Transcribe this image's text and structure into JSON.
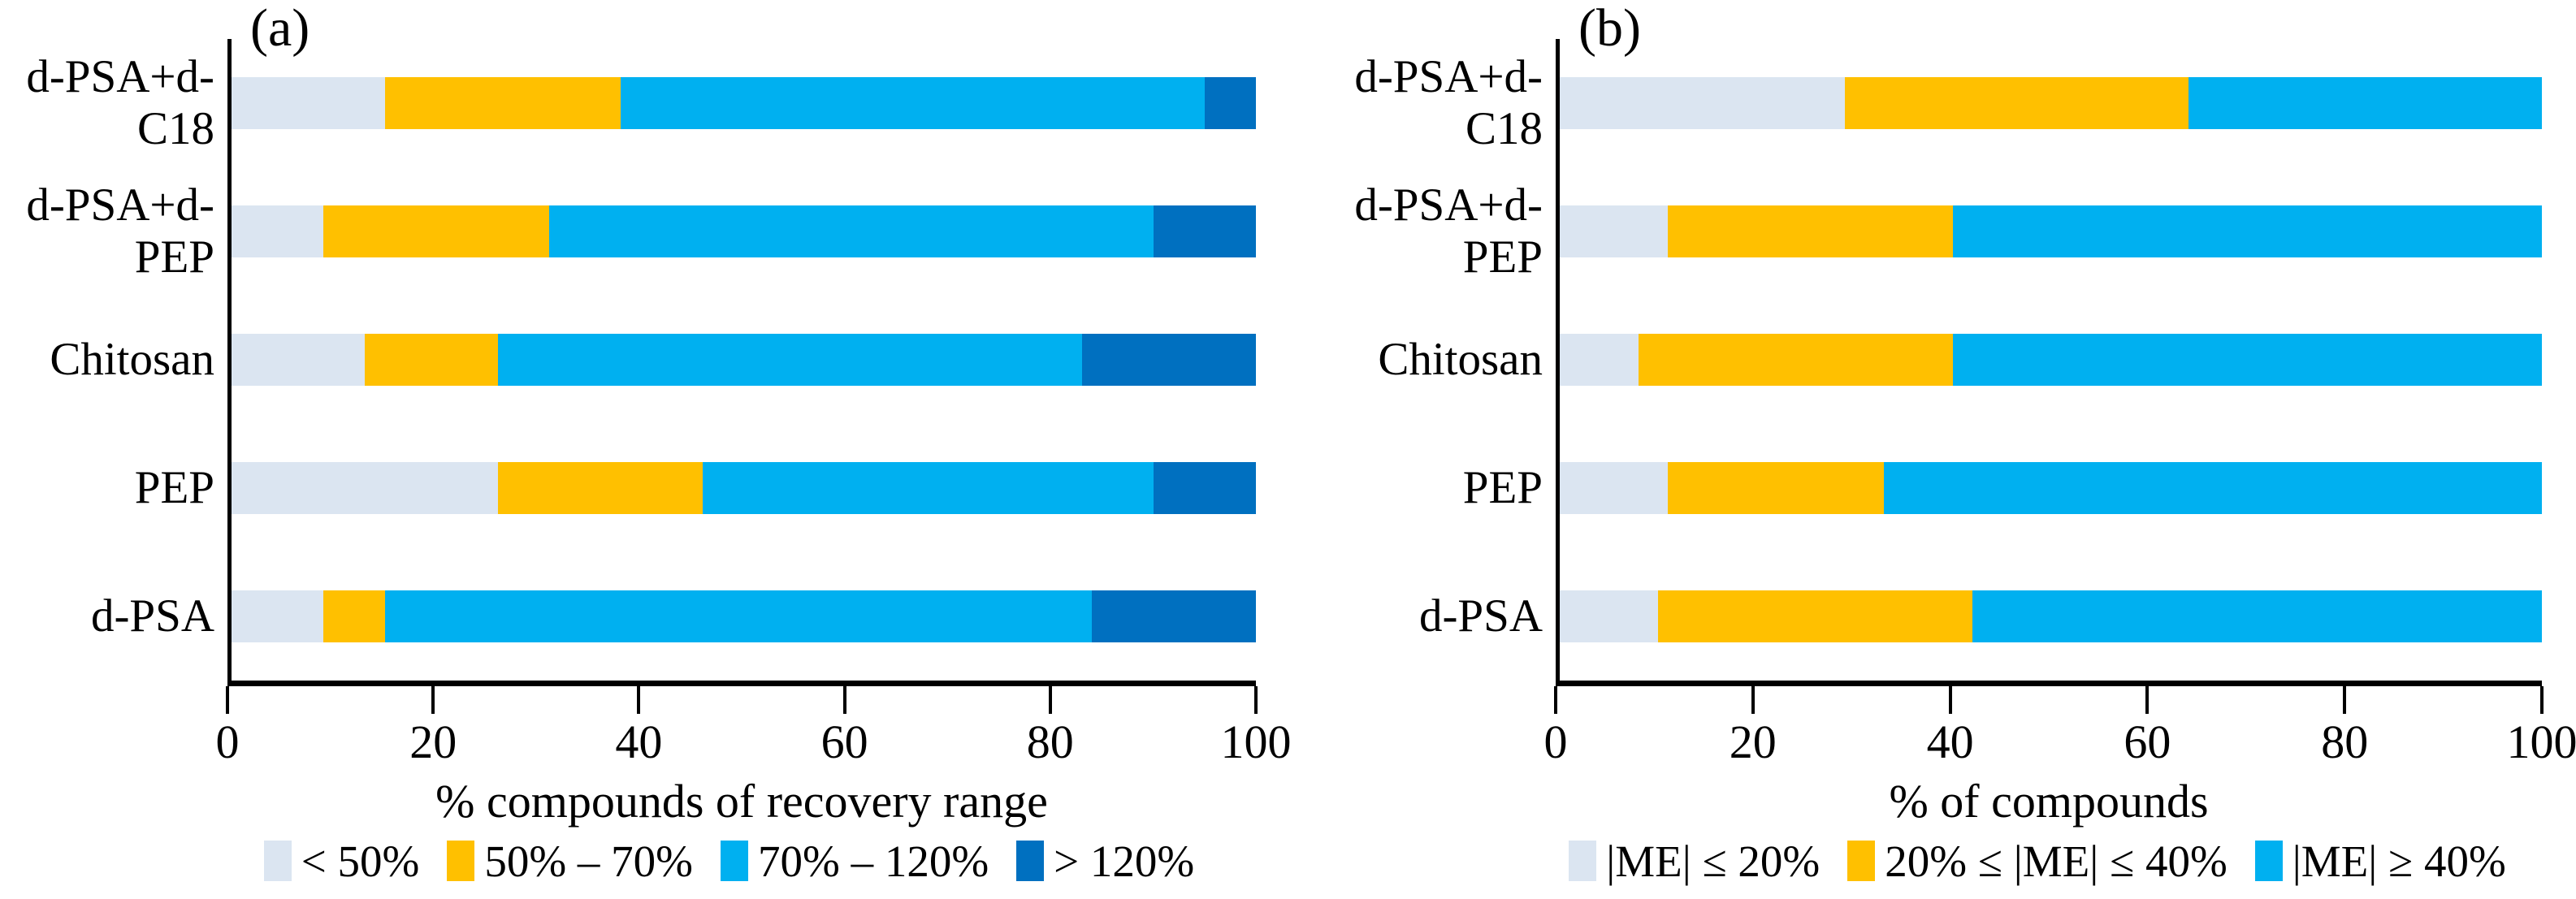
{
  "figure": {
    "background": "#ffffff"
  },
  "colors": {
    "pale_blue": "#DBE5F1",
    "amber": "#FFC000",
    "cyan_blue": "#00B0F0",
    "dark_blue": "#0070C0",
    "axis": "#000000"
  },
  "chart_data": [
    {
      "type": "bar",
      "orientation": "horizontal",
      "stacked": true,
      "panel_label": "(a)",
      "title": "",
      "xlabel": "% compounds of recovery range",
      "ylabel": "",
      "xlim": [
        0,
        100
      ],
      "xticks": [
        0,
        20,
        40,
        60,
        80,
        100
      ],
      "grid": false,
      "legend_position": "bottom",
      "categories": [
        "d-PSA+d-C18",
        "d-PSA+d-PEP",
        "Chitosan",
        "PEP",
        "d-PSA"
      ],
      "category_display": [
        "d-PSA+d-\nC18",
        "d-PSA+d-\nPEP",
        "Chitosan",
        "PEP",
        "d-PSA"
      ],
      "series": [
        {
          "name": "< 50%",
          "color": "#DBE5F1",
          "values": [
            15,
            9,
            13,
            26,
            9
          ]
        },
        {
          "name": "50% – 70%",
          "color": "#FFC000",
          "values": [
            23,
            22,
            13,
            20,
            6
          ]
        },
        {
          "name": "70% – 120%",
          "color": "#00B0F0",
          "values": [
            57,
            59,
            57,
            44,
            69
          ]
        },
        {
          "name": "> 120%",
          "color": "#0070C0",
          "values": [
            5,
            10,
            17,
            10,
            16
          ]
        }
      ]
    },
    {
      "type": "bar",
      "orientation": "horizontal",
      "stacked": true,
      "panel_label": "(b)",
      "title": "",
      "xlabel": "% of compounds",
      "ylabel": "",
      "xlim": [
        0,
        100
      ],
      "xticks": [
        0,
        20,
        40,
        60,
        80,
        100
      ],
      "grid": false,
      "legend_position": "bottom",
      "categories": [
        "d-PSA+d-C18",
        "d-PSA+d-PEP",
        "Chitosan",
        "PEP",
        "d-PSA"
      ],
      "category_display": [
        "d-PSA+d-\nC18",
        "d-PSA+d-\nPEP",
        "Chitosan",
        "PEP",
        "d-PSA"
      ],
      "series": [
        {
          "name": "|ME| ≤ 20%",
          "color": "#DBE5F1",
          "values": [
            29,
            11,
            8,
            11,
            10
          ]
        },
        {
          "name": "20% ≤ |ME| ≤ 40%",
          "color": "#FFC000",
          "values": [
            35,
            29,
            32,
            22,
            32
          ]
        },
        {
          "name": "|ME| ≥ 40%",
          "color": "#00B0F0",
          "values": [
            36,
            60,
            60,
            67,
            58
          ]
        }
      ]
    }
  ]
}
